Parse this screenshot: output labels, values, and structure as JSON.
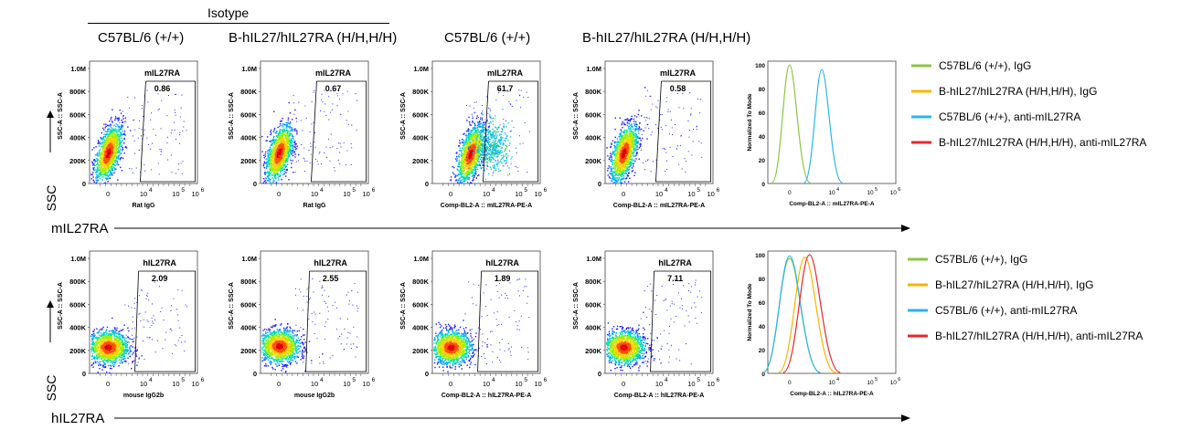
{
  "headers": {
    "isotype": "Isotype",
    "columns": [
      "C57BL/6 (+/+)",
      "B-hIL27/hIL27RA (H/H,H/H)",
      "C57BL/6 (+/+)",
      "B-hIL27/hIL27RA (H/H,H/H)"
    ]
  },
  "axis_common": {
    "ssc_label": "SSC-A :: SSC-A",
    "y_ticks": [
      "1.0M",
      "800K",
      "600K",
      "400K",
      "200K",
      "0"
    ],
    "x_ticks": [
      "0",
      "10",
      "10",
      "10"
    ],
    "x_tick_exponents": [
      "",
      "4",
      "5",
      "6"
    ]
  },
  "row_arrows": [
    {
      "y_label": "SSC",
      "x_label": "mIL27RA"
    },
    {
      "y_label": "SSC",
      "x_label": "hIL27RA"
    }
  ],
  "chart_data": [
    {
      "type": "scatter",
      "row": 1,
      "col": 1,
      "gate": "mIL27RA",
      "gate_pct": "0.86",
      "xlabel": "Rat IgG",
      "ylabel": "SSC-A :: SSC-A",
      "ylim": [
        0,
        1000000
      ],
      "density_center": [
        0,
        270000
      ]
    },
    {
      "type": "scatter",
      "row": 1,
      "col": 2,
      "gate": "mIL27RA",
      "gate_pct": "0.67",
      "xlabel": "Rat IgG",
      "ylabel": "SSC-A :: SSC-A",
      "ylim": [
        0,
        1000000
      ],
      "density_center": [
        0,
        270000
      ]
    },
    {
      "type": "scatter",
      "row": 1,
      "col": 3,
      "gate": "mIL27RA",
      "gate_pct": "61.7",
      "xlabel": "Comp-BL2-A :: mIL27RA-PE-A",
      "ylabel": "SSC-A :: SSC-A",
      "ylim": [
        0,
        1000000
      ],
      "density_center": [
        1000,
        260000
      ]
    },
    {
      "type": "scatter",
      "row": 1,
      "col": 4,
      "gate": "mIL27RA",
      "gate_pct": "0.58",
      "xlabel": "Comp-BL2-A :: mIL27RA-PE-A",
      "ylabel": "SSC-A :: SSC-A",
      "ylim": [
        0,
        1000000
      ],
      "density_center": [
        0,
        270000
      ]
    },
    {
      "type": "line",
      "row": 1,
      "col": 5,
      "xlabel": "Comp-BL2-A :: mIL27RA-PE-A",
      "ylabel": "Normalized To Mode",
      "y_ticks": [
        "100",
        "80",
        "60",
        "40",
        "20",
        "0"
      ],
      "x_ticks": [
        "0",
        "10",
        "10",
        "10"
      ],
      "x_tick_exponents": [
        "",
        "4",
        "5",
        "6"
      ],
      "ylim": [
        0,
        100
      ],
      "series": [
        {
          "name": "C57BL/6 (+/+), IgG",
          "color": "#8dc63f",
          "peak_x": 0,
          "peak_y": 100
        },
        {
          "name": "C57BL/6 (+/+), anti-mIL27RA",
          "color": "#29b6e8",
          "peak_x": 3000,
          "peak_y": 96
        }
      ]
    },
    {
      "type": "scatter",
      "row": 2,
      "col": 1,
      "gate": "hIL27RA",
      "gate_pct": "2.09",
      "xlabel": "mouse IgG2b",
      "ylabel": "SSC-A :: SSC-A",
      "ylim": [
        0,
        1000000
      ],
      "density_center": [
        0,
        230000
      ]
    },
    {
      "type": "scatter",
      "row": 2,
      "col": 2,
      "gate": "hIL27RA",
      "gate_pct": "2.55",
      "xlabel": "mouse IgG2b",
      "ylabel": "SSC-A :: SSC-A",
      "ylim": [
        0,
        1000000
      ],
      "density_center": [
        0,
        240000
      ]
    },
    {
      "type": "scatter",
      "row": 2,
      "col": 3,
      "gate": "hIL27RA",
      "gate_pct": "1.89",
      "xlabel": "Comp-BL2-A :: hIL27RA-PE-A",
      "ylabel": "SSC-A :: SSC-A",
      "ylim": [
        0,
        1000000
      ],
      "density_center": [
        0,
        230000
      ]
    },
    {
      "type": "scatter",
      "row": 2,
      "col": 4,
      "gate": "hIL27RA",
      "gate_pct": "7.11",
      "xlabel": "Comp-BL2-A :: hIL27RA-PE-A",
      "ylabel": "SSC-A :: SSC-A",
      "ylim": [
        0,
        1000000
      ],
      "density_center": [
        0,
        230000
      ]
    },
    {
      "type": "line",
      "row": 2,
      "col": 5,
      "xlabel": "Comp-BL2-A :: hIL27RA-PE-A",
      "ylabel": "Normalized To Mode",
      "y_ticks": [
        "100",
        "80",
        "60",
        "40",
        "20",
        "0"
      ],
      "x_ticks": [
        "0",
        "10",
        "10",
        "10"
      ],
      "x_tick_exponents": [
        "",
        "4",
        "5",
        "6"
      ],
      "ylim": [
        0,
        100
      ],
      "series": [
        {
          "name": "C57BL/6 (+/+), IgG",
          "color": "#8dc63f",
          "peak_x": 0,
          "peak_y": 97
        },
        {
          "name": "B-hIL27/hIL27RA (H/H,H/H), IgG",
          "color": "#f7b500",
          "peak_x": 100,
          "peak_y": 98
        },
        {
          "name": "C57BL/6 (+/+), anti-mIL27RA",
          "color": "#29b6e8",
          "peak_x": 0,
          "peak_y": 99
        },
        {
          "name": "B-hIL27/hIL27RA (H/H,H/H), anti-mIL27RA",
          "color": "#e8262d",
          "peak_x": 400,
          "peak_y": 100
        }
      ]
    }
  ],
  "legend": {
    "items": [
      {
        "label": "C57BL/6 (+/+), IgG",
        "color": "#8dc63f"
      },
      {
        "label": "B-hIL27/hIL27RA (H/H,H/H), IgG",
        "color": "#f7b500"
      },
      {
        "label": "C57BL/6 (+/+), anti-mIL27RA",
        "color": "#29b6e8"
      },
      {
        "label": "B-hIL27/hIL27RA (H/H,H/H), anti-mIL27RA",
        "color": "#e8262d"
      }
    ]
  }
}
